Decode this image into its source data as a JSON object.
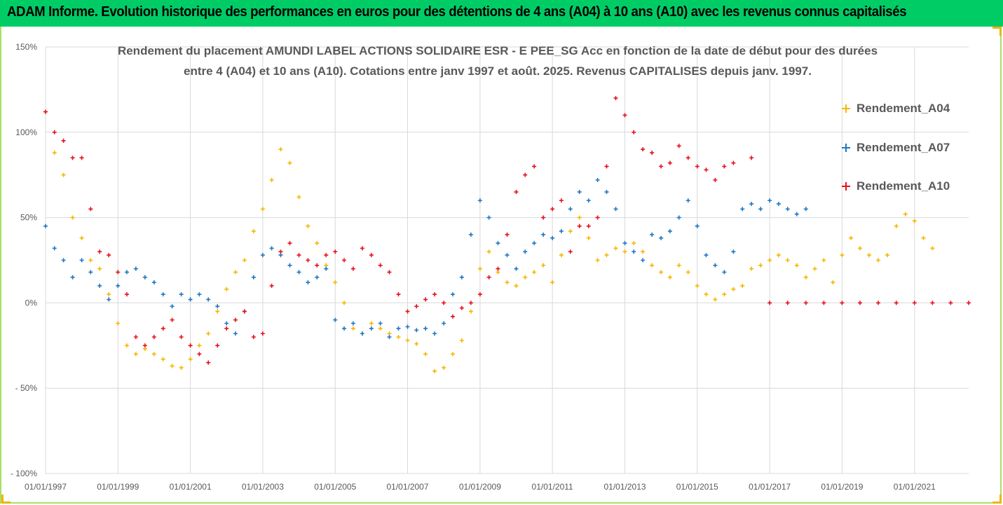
{
  "header": {
    "title": "ADAM Informe. Evolution historique des performances en euros pour des détentions de 4 ans (A04) à 10 ans (A10) avec les revenus connus capitalisés"
  },
  "colors": {
    "header_bg": "#00cc66",
    "A04": "#f5b800",
    "A07": "#1f77c4",
    "A10": "#e8101a"
  },
  "chart_data": {
    "type": "scatter",
    "title_line1": "Rendement du placement AMUNDI LABEL ACTIONS SOLIDAIRE ESR - E PEE_SG Acc en fonction de la date de début pour des durées",
    "title_line2": "entre 4 (A04) et 10 ans (A10). Cotations entre janv 1997 et août. 2025. Revenus CAPITALISES depuis janv. 1997.",
    "xlabel": "",
    "ylabel": "",
    "xlim": [
      "1997-01-01",
      "2022-07-01"
    ],
    "ylim": [
      -100,
      150
    ],
    "y_ticks": [
      150,
      100,
      50,
      0,
      -50,
      -100
    ],
    "y_tick_labels": [
      "150%",
      "100%",
      "50%",
      "0%",
      "- 50%",
      "- 100%"
    ],
    "x_tick_labels": [
      "01/01/1997",
      "01/01/1999",
      "01/01/2001",
      "01/01/2003",
      "01/01/2005",
      "01/01/2007",
      "01/01/2009",
      "01/01/2011",
      "01/01/2013",
      "01/01/2015",
      "01/01/2017",
      "01/01/2019",
      "01/01/2021"
    ],
    "grid": true,
    "legend_position": "right",
    "series": [
      {
        "name": "Rendement_A04",
        "color": "#f5b800",
        "x": [
          "1997-01-01",
          "1997-04-01",
          "1997-07-01",
          "1997-10-01",
          "1998-01-01",
          "1998-04-01",
          "1998-07-01",
          "1998-10-01",
          "1999-01-01",
          "1999-04-01",
          "1999-07-01",
          "1999-10-01",
          "2000-01-01",
          "2000-04-01",
          "2000-07-01",
          "2000-10-01",
          "2001-01-01",
          "2001-04-01",
          "2001-07-01",
          "2001-10-01",
          "2002-01-01",
          "2002-04-01",
          "2002-07-01",
          "2002-10-01",
          "2003-01-01",
          "2003-04-01",
          "2003-07-01",
          "2003-10-01",
          "2004-01-01",
          "2004-04-01",
          "2004-07-01",
          "2004-10-01",
          "2005-01-01",
          "2005-04-01",
          "2005-07-01",
          "2005-10-01",
          "2006-01-01",
          "2006-04-01",
          "2006-07-01",
          "2006-10-01",
          "2007-01-01",
          "2007-04-01",
          "2007-07-01",
          "2007-10-01",
          "2008-01-01",
          "2008-04-01",
          "2008-07-01",
          "2008-10-01",
          "2009-01-01",
          "2009-04-01",
          "2009-07-01",
          "2009-10-01",
          "2010-01-01",
          "2010-04-01",
          "2010-07-01",
          "2010-10-01",
          "2011-01-01",
          "2011-04-01",
          "2011-07-01",
          "2011-10-01",
          "2012-01-01",
          "2012-04-01",
          "2012-07-01",
          "2012-10-01",
          "2013-01-01",
          "2013-04-01",
          "2013-07-01",
          "2013-10-01",
          "2014-01-01",
          "2014-04-01",
          "2014-07-01",
          "2014-10-01",
          "2015-01-01",
          "2015-04-01",
          "2015-07-01",
          "2015-10-01",
          "2016-01-01",
          "2016-04-01",
          "2016-07-01",
          "2016-10-01",
          "2017-01-01",
          "2017-04-01",
          "2017-07-01",
          "2017-10-01",
          "2018-01-01",
          "2018-04-01",
          "2018-07-01",
          "2018-10-01",
          "2019-01-01",
          "2019-04-01",
          "2019-07-01",
          "2019-10-01",
          "2020-01-01",
          "2020-04-01",
          "2020-07-01",
          "2020-10-01",
          "2021-01-01",
          "2021-04-01",
          "2021-07-01"
        ],
        "y": [
          112,
          88,
          75,
          50,
          38,
          25,
          20,
          5,
          -12,
          -25,
          -30,
          -27,
          -30,
          -33,
          -37,
          -38,
          -33,
          -25,
          -18,
          -5,
          8,
          18,
          25,
          42,
          55,
          72,
          90,
          82,
          62,
          45,
          35,
          22,
          12,
          0,
          -15,
          -18,
          -12,
          -15,
          -18,
          -20,
          -22,
          -24,
          -30,
          -40,
          -38,
          -30,
          -22,
          -5,
          20,
          30,
          18,
          12,
          10,
          15,
          18,
          22,
          12,
          28,
          42,
          50,
          38,
          25,
          28,
          32,
          30,
          35,
          30,
          22,
          18,
          15,
          22,
          18,
          10,
          5,
          2,
          5,
          8,
          10,
          20,
          22,
          25,
          28,
          25,
          22,
          15,
          20,
          25,
          12,
          28,
          38,
          32,
          28,
          25,
          28,
          45,
          52,
          48,
          38,
          32
        ]
      },
      {
        "name": "Rendement_A07",
        "color": "#1f77c4",
        "x": [
          "1997-01-01",
          "1997-04-01",
          "1997-07-01",
          "1997-10-01",
          "1998-01-01",
          "1998-04-01",
          "1998-07-01",
          "1998-10-01",
          "1999-01-01",
          "1999-04-01",
          "1999-07-01",
          "1999-10-01",
          "2000-01-01",
          "2000-04-01",
          "2000-07-01",
          "2000-10-01",
          "2001-01-01",
          "2001-04-01",
          "2001-07-01",
          "2001-10-01",
          "2002-01-01",
          "2002-04-01",
          "2002-07-01",
          "2002-10-01",
          "2003-01-01",
          "2003-04-01",
          "2003-07-01",
          "2003-10-01",
          "2004-01-01",
          "2004-04-01",
          "2004-07-01",
          "2004-10-01",
          "2005-01-01",
          "2005-04-01",
          "2005-07-01",
          "2005-10-01",
          "2006-01-01",
          "2006-04-01",
          "2006-07-01",
          "2006-10-01",
          "2007-01-01",
          "2007-04-01",
          "2007-07-01",
          "2007-10-01",
          "2008-01-01",
          "2008-04-01",
          "2008-07-01",
          "2008-10-01",
          "2009-01-01",
          "2009-04-01",
          "2009-07-01",
          "2009-10-01",
          "2010-01-01",
          "2010-04-01",
          "2010-07-01",
          "2010-10-01",
          "2011-01-01",
          "2011-04-01",
          "2011-07-01",
          "2011-10-01",
          "2012-01-01",
          "2012-04-01",
          "2012-07-01",
          "2012-10-01",
          "2013-01-01",
          "2013-04-01",
          "2013-07-01",
          "2013-10-01",
          "2014-01-01",
          "2014-04-01",
          "2014-07-01",
          "2014-10-01",
          "2015-01-01",
          "2015-04-01",
          "2015-07-01",
          "2015-10-01",
          "2016-01-01",
          "2016-04-01",
          "2016-07-01",
          "2016-10-01",
          "2017-01-01",
          "2017-04-01",
          "2017-07-01",
          "2017-10-01",
          "2018-01-01"
        ],
        "y": [
          45,
          32,
          25,
          15,
          25,
          18,
          10,
          2,
          10,
          18,
          20,
          15,
          12,
          5,
          -2,
          5,
          2,
          5,
          2,
          -2,
          -12,
          -18,
          -5,
          15,
          28,
          32,
          28,
          22,
          18,
          12,
          15,
          20,
          -10,
          -15,
          -12,
          -18,
          -15,
          -12,
          -20,
          -15,
          -14,
          -16,
          -15,
          -18,
          -12,
          5,
          15,
          40,
          60,
          50,
          35,
          28,
          20,
          30,
          35,
          40,
          38,
          42,
          55,
          65,
          60,
          72,
          65,
          55,
          35,
          30,
          25,
          40,
          38,
          42,
          50,
          60,
          45,
          28,
          22,
          18,
          30,
          55,
          58,
          55,
          60,
          58,
          55,
          52,
          55
        ]
      },
      {
        "name": "Rendement_A10",
        "color": "#e8101a",
        "x": [
          "1997-01-01",
          "1997-04-01",
          "1997-07-01",
          "1997-10-01",
          "1998-01-01",
          "1998-04-01",
          "1998-07-01",
          "1998-10-01",
          "1999-01-01",
          "1999-04-01",
          "1999-07-01",
          "1999-10-01",
          "2000-01-01",
          "2000-04-01",
          "2000-07-01",
          "2000-10-01",
          "2001-01-01",
          "2001-04-01",
          "2001-07-01",
          "2001-10-01",
          "2002-01-01",
          "2002-04-01",
          "2002-07-01",
          "2002-10-01",
          "2003-01-01",
          "2003-04-01",
          "2003-07-01",
          "2003-10-01",
          "2004-01-01",
          "2004-04-01",
          "2004-07-01",
          "2004-10-01",
          "2005-01-01",
          "2005-04-01",
          "2005-07-01",
          "2005-10-01",
          "2006-01-01",
          "2006-04-01",
          "2006-07-01",
          "2006-10-01",
          "2007-01-01",
          "2007-04-01",
          "2007-07-01",
          "2007-10-01",
          "2008-01-01",
          "2008-04-01",
          "2008-07-01",
          "2008-10-01",
          "2009-01-01",
          "2009-04-01",
          "2009-07-01",
          "2009-10-01",
          "2010-01-01",
          "2010-04-01",
          "2010-07-01",
          "2010-10-01",
          "2011-01-01",
          "2011-04-01",
          "2011-07-01",
          "2011-10-01",
          "2012-01-01",
          "2012-04-01",
          "2012-07-01",
          "2012-10-01",
          "2013-01-01",
          "2013-04-01",
          "2013-07-01",
          "2013-10-01",
          "2014-01-01",
          "2014-04-01",
          "2014-07-01",
          "2014-10-01",
          "2015-01-01",
          "2015-04-01",
          "2015-07-01",
          "2015-10-01",
          "2016-01-01",
          "2016-07-01",
          "2017-01-01",
          "2017-07-01",
          "2018-01-01",
          "2018-07-01",
          "2019-01-01",
          "2019-07-01",
          "2020-01-01",
          "2020-07-01",
          "2021-01-01",
          "2021-07-01",
          "2022-01-01",
          "2022-07-01"
        ],
        "y": [
          112,
          100,
          95,
          85,
          85,
          55,
          30,
          28,
          18,
          5,
          -20,
          -25,
          -20,
          -15,
          -10,
          -20,
          -25,
          -30,
          -35,
          -25,
          -15,
          -10,
          -5,
          -20,
          -18,
          10,
          30,
          35,
          28,
          25,
          22,
          28,
          30,
          25,
          20,
          32,
          28,
          22,
          18,
          5,
          -5,
          -2,
          2,
          5,
          0,
          -8,
          -3,
          0,
          5,
          15,
          20,
          40,
          65,
          75,
          80,
          50,
          55,
          60,
          30,
          45,
          45,
          50,
          80,
          120,
          110,
          100,
          90,
          88,
          80,
          82,
          92,
          85,
          80,
          78,
          72,
          80,
          82,
          85,
          0,
          0,
          0,
          0,
          0,
          0,
          0,
          0,
          0,
          0,
          0,
          0
        ]
      }
    ]
  }
}
